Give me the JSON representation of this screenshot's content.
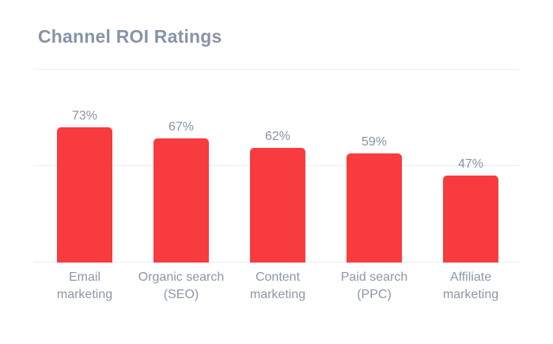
{
  "page": {
    "background_color": "#ffffff"
  },
  "chart_data": {
    "type": "bar",
    "title": "Channel ROI Ratings",
    "categories": [
      "Email\nmarketing",
      "Organic search\n(SEO)",
      "Content\nmarketing",
      "Paid search\n(PPC)",
      "Affiliate\nmarketing"
    ],
    "values": [
      73,
      67,
      62,
      59,
      47
    ],
    "value_labels": [
      "73%",
      "67%",
      "62%",
      "59%",
      "47%"
    ],
    "xlabel": "",
    "ylabel": "",
    "ylim": [
      0,
      105
    ],
    "yticks_shown": false,
    "grid": "horizontal, 3 unlabeled lines (top line doubles as title divider)",
    "legend": "none",
    "bar_color": "#f83b3e",
    "title_color": "#8793a8",
    "value_label_color": "#8793a8",
    "category_label_color": "#8c96a9",
    "gridline_color": "#ececef"
  }
}
